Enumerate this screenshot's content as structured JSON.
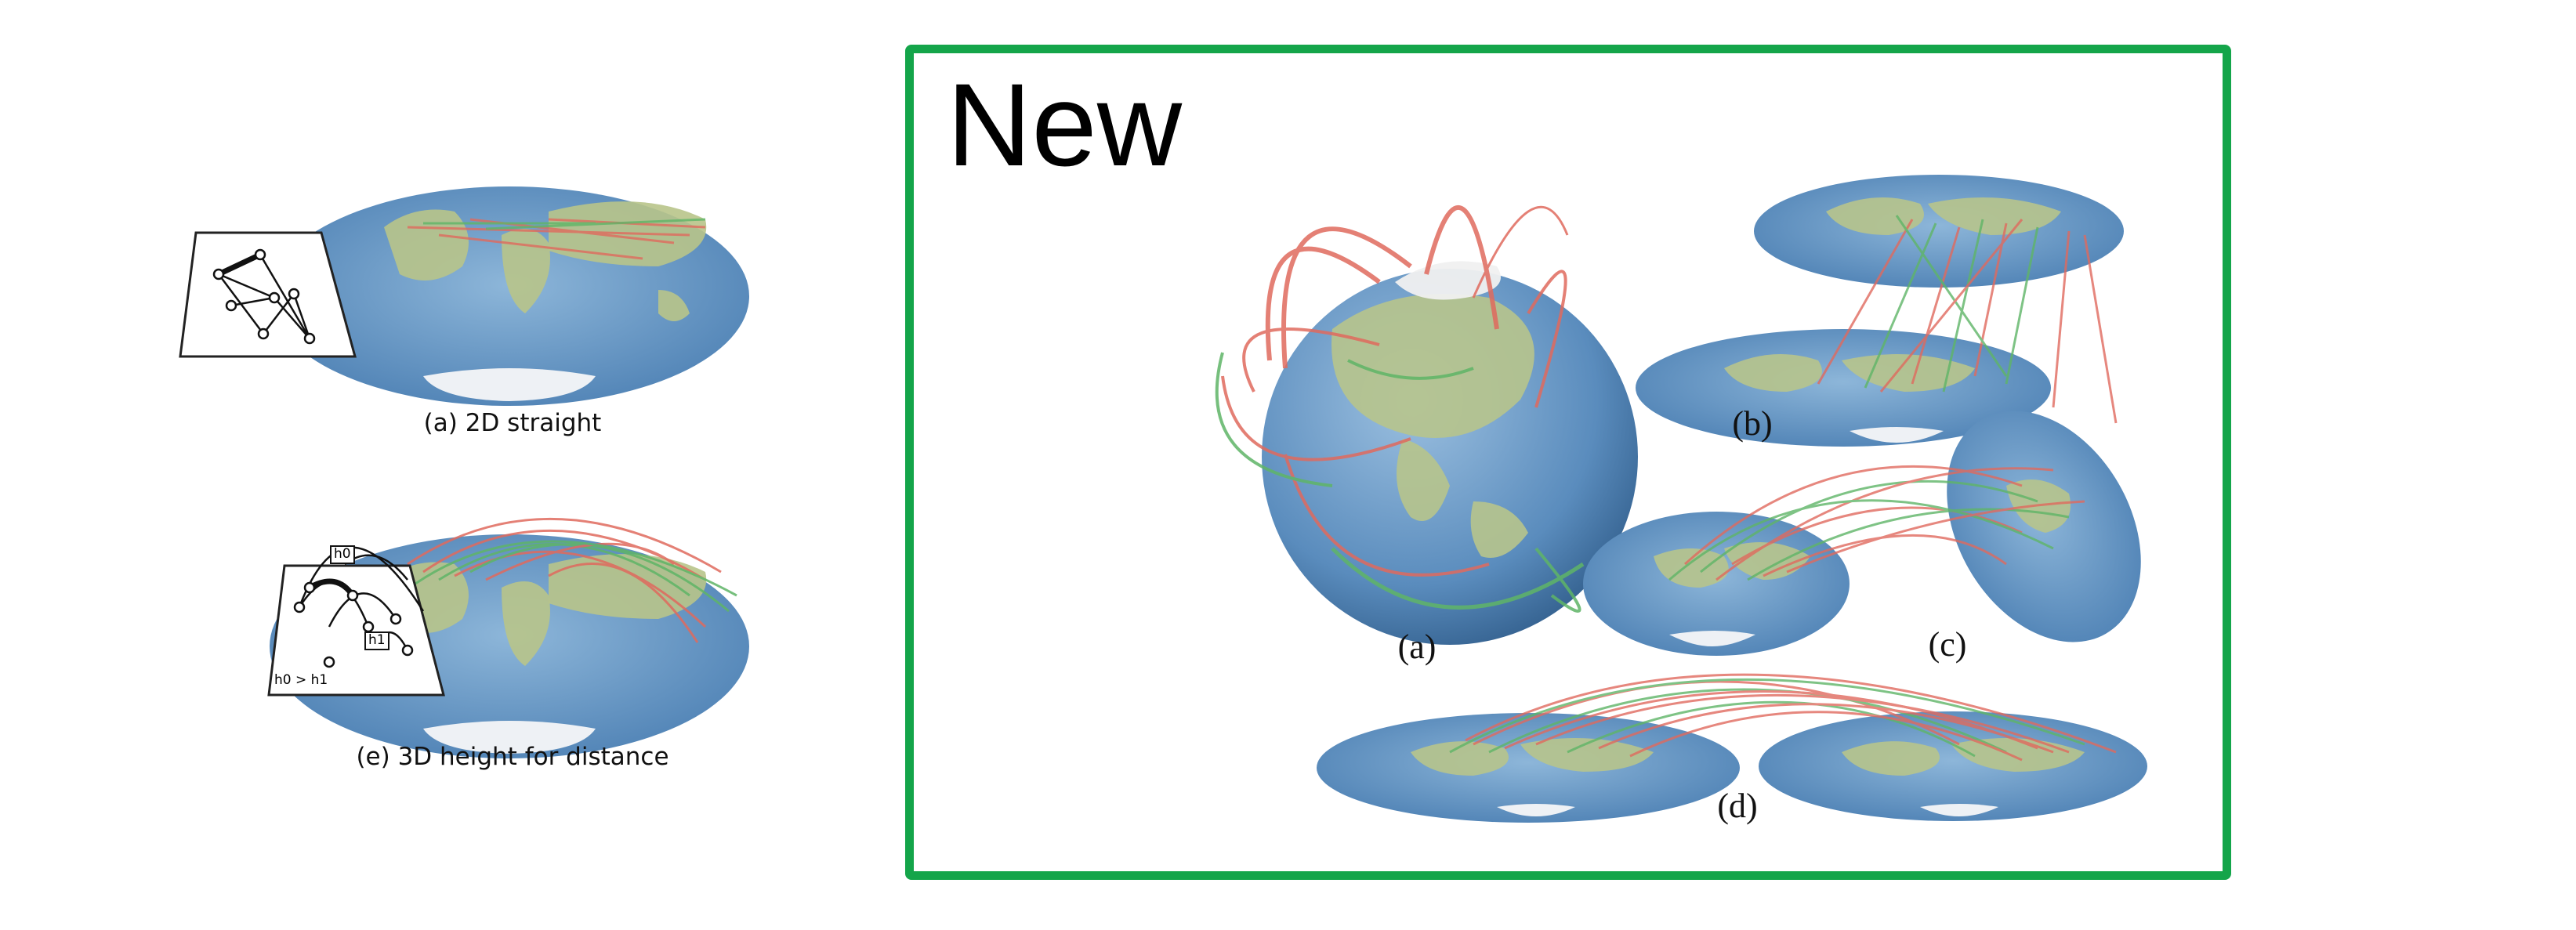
{
  "left_panels": {
    "caption_a": "(a) 2D straight",
    "caption_e": "(e) 3D height for distance",
    "inset_e": {
      "label_h0": "h0",
      "label_h1": "h1",
      "label_cmp": "h0 > h1"
    }
  },
  "new_panel": {
    "title": "New",
    "border_color": "#14a54a",
    "captions": {
      "a": "(a)",
      "b": "(b)",
      "c": "(c)",
      "d": "(d)"
    }
  },
  "colors": {
    "ocean": "#6f9fcb",
    "land": "#b8c48a",
    "ice": "#eef1f5",
    "flow_red": "#e06a5e",
    "flow_green": "#5fb567"
  }
}
